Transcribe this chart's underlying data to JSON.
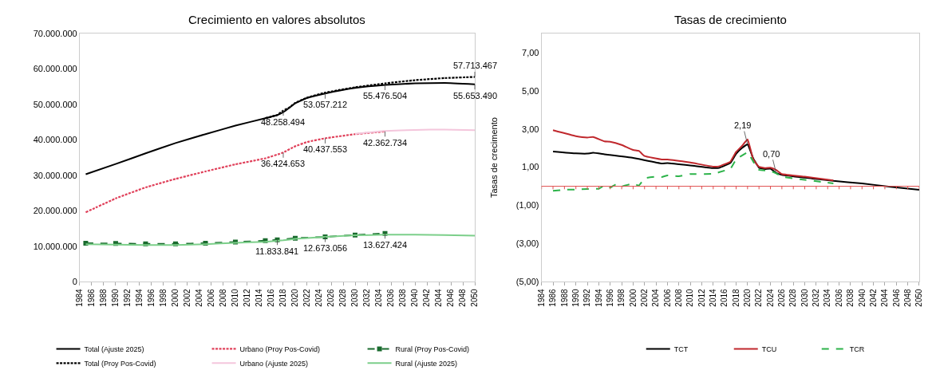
{
  "chart_data": [
    {
      "type": "line",
      "title": "Crecimiento en valores absolutos",
      "xlim": [
        1984,
        2050
      ],
      "xticks": [
        1984,
        1986,
        1988,
        1990,
        1992,
        1994,
        1996,
        1998,
        2000,
        2002,
        2004,
        2006,
        2008,
        2010,
        2012,
        2014,
        2016,
        2018,
        2020,
        2022,
        2024,
        2026,
        2028,
        2030,
        2032,
        2034,
        2036,
        2038,
        2040,
        2042,
        2044,
        2046,
        2048,
        2050
      ],
      "ylim": [
        0,
        70000000
      ],
      "yticks": [
        0,
        {
          "value": 10000000,
          "label": "10.000.000"
        },
        {
          "value": 20000000,
          "label": "20.000.000"
        },
        {
          "value": 30000000,
          "label": "30.000.000"
        },
        {
          "value": 40000000,
          "label": "40.000.000"
        },
        {
          "value": 50000000,
          "label": "50.000.000"
        },
        {
          "value": 60000000,
          "label": "60.000.000"
        },
        {
          "value": 70000000,
          "label": "70.000.000"
        }
      ],
      "legend": "bottom",
      "series": [
        {
          "name": "Total (Ajuste 2025)",
          "color": "#000000",
          "line_style": "solid",
          "marker": "none",
          "x": [
            1985,
            1990,
            1995,
            2000,
            2005,
            2010,
            2015,
            2017,
            2018,
            2019,
            2020,
            2022,
            2025,
            2030,
            2035,
            2040,
            2045,
            2050
          ],
          "values": [
            30300000,
            33200000,
            36200000,
            39100000,
            41600000,
            44000000,
            46100000,
            47000000,
            47800000,
            49000000,
            50300000,
            51800000,
            53057212,
            54600000,
            55476504,
            55900000,
            56000000,
            55653490
          ]
        },
        {
          "name": "Urbano (Proy Pos-Covid)",
          "color": "#e0405a",
          "line_style": "dotted",
          "marker": "none",
          "x": [
            1985,
            1990,
            1995,
            2000,
            2005,
            2010,
            2015,
            2018,
            2020,
            2022,
            2025,
            2030,
            2035
          ],
          "values": [
            19600000,
            23500000,
            26600000,
            29000000,
            31100000,
            33100000,
            34800000,
            36424653,
            38200000,
            39400000,
            40437553,
            41600000,
            42362734
          ]
        },
        {
          "name": "Rural (Proy Pos-Covid)",
          "color": "#1a6b2e",
          "line_style": "dashed",
          "marker": "square",
          "x": [
            1985,
            1990,
            1995,
            2000,
            2005,
            2010,
            2015,
            2017,
            2020,
            2025,
            2030,
            2035
          ],
          "values": [
            10900000,
            10800000,
            10700000,
            10700000,
            10900000,
            11200000,
            11600000,
            11833841,
            12300000,
            12673056,
            13200000,
            13627424
          ]
        },
        {
          "name": "Total (Proy Pos-Covid)",
          "color": "#000000",
          "line_style": "dotted",
          "marker": "none",
          "x": [
            2015,
            2017,
            2018,
            2019,
            2020,
            2022,
            2025,
            2030,
            2035,
            2040,
            2045,
            2050
          ],
          "values": [
            46100000,
            47000000,
            48258494,
            49100000,
            50400000,
            51900000,
            53300000,
            54800000,
            55900000,
            56800000,
            57400000,
            57713467
          ]
        },
        {
          "name": "Urbano (Ajuste 2025)",
          "color": "#f4c6dc",
          "line_style": "solid",
          "marker": "none",
          "x": [
            2030,
            2035,
            2040,
            2045,
            2050
          ],
          "values": [
            41700000,
            42500000,
            42800000,
            42900000,
            42700000
          ]
        },
        {
          "name": "Rural (Ajuste 2025)",
          "color": "#7ccf8a",
          "line_style": "solid",
          "marker": "none",
          "x": [
            1985,
            1990,
            1995,
            2000,
            2005,
            2010,
            2015,
            2018,
            2020,
            2025,
            2030,
            2035,
            2040,
            2045,
            2050
          ],
          "values": [
            10600000,
            10500000,
            10400000,
            10400000,
            10600000,
            11000000,
            11300000,
            11700000,
            12100000,
            12700000,
            13100000,
            13300000,
            13300000,
            13200000,
            13000000
          ]
        }
      ],
      "annotations": [
        {
          "text": "48.258.494",
          "x": 2018,
          "y": 48258494
        },
        {
          "text": "53.057.212",
          "x": 2025,
          "y": 53057212
        },
        {
          "text": "55.476.504",
          "x": 2035,
          "y": 55476504
        },
        {
          "text": "55.653.490",
          "x": 2050,
          "y": 55653490
        },
        {
          "text": "57.713.467",
          "x": 2050,
          "y": 57713467
        },
        {
          "text": "36.424.653",
          "x": 2018,
          "y": 36424653
        },
        {
          "text": "40.437.553",
          "x": 2025,
          "y": 40437553
        },
        {
          "text": "42.362.734",
          "x": 2035,
          "y": 42362734
        },
        {
          "text": "11.833.841",
          "x": 2017,
          "y": 11833841
        },
        {
          "text": "12.673.056",
          "x": 2025,
          "y": 12673056
        },
        {
          "text": "13.627.424",
          "x": 2035,
          "y": 13627424
        }
      ]
    },
    {
      "type": "line",
      "title": "Tasas de crecimiento",
      "ylabel": "Tasas de crecimento",
      "xlim": [
        1984,
        2050
      ],
      "xticks": [
        1984,
        1986,
        1988,
        1990,
        1992,
        1994,
        1996,
        1998,
        2000,
        2002,
        2004,
        2006,
        2008,
        2010,
        2012,
        2014,
        2016,
        2018,
        2020,
        2022,
        2024,
        2026,
        2028,
        2030,
        2032,
        2034,
        2036,
        2038,
        2040,
        2042,
        2044,
        2046,
        2048,
        2050
      ],
      "ylim": [
        -5,
        8
      ],
      "yticks": [
        {
          "value": -5,
          "label": "(5,00)"
        },
        {
          "value": -3,
          "label": "(3,00)"
        },
        {
          "value": -1,
          "label": "(1,00)"
        },
        {
          "value": 1,
          "label": "1,00"
        },
        {
          "value": 3,
          "label": "3,00"
        },
        {
          "value": 5,
          "label": "5,00"
        },
        {
          "value": 7,
          "label": "7,00"
        }
      ],
      "legend": "bottom",
      "ref_lines": [
        {
          "axis": "y",
          "value": 0,
          "color": "#e05050"
        }
      ],
      "series": [
        {
          "name": "TCT",
          "color": "#000000",
          "line_style": "solid",
          "marker": "none",
          "x": [
            1986,
            1990,
            1992,
            1993,
            1995,
            2000,
            2005,
            2006,
            2010,
            2014,
            2015,
            2017,
            2018,
            2019,
            2020,
            2021,
            2022,
            2023,
            2024,
            2025,
            2026,
            2030,
            2035,
            2040,
            2045,
            2050
          ],
          "values": [
            1.82,
            1.72,
            1.71,
            1.75,
            1.67,
            1.48,
            1.19,
            1.21,
            1.09,
            0.95,
            0.96,
            1.22,
            1.7,
            2.0,
            2.19,
            1.45,
            0.97,
            0.9,
            0.92,
            0.7,
            0.6,
            0.45,
            0.28,
            0.15,
            -0.03,
            -0.18
          ]
        },
        {
          "name": "TCU",
          "color": "#c0282d",
          "line_style": "solid",
          "marker": "none",
          "x": [
            1986,
            1990,
            1992,
            1993,
            1995,
            1996,
            1998,
            2000,
            2001,
            2002,
            2005,
            2006,
            2010,
            2014,
            2015,
            2017,
            2018,
            2019,
            2020,
            2021,
            2022,
            2023,
            2024,
            2025,
            2026,
            2030,
            2035
          ],
          "values": [
            2.93,
            2.62,
            2.55,
            2.58,
            2.35,
            2.33,
            2.16,
            1.9,
            1.85,
            1.58,
            1.4,
            1.4,
            1.24,
            1.03,
            1.04,
            1.29,
            1.8,
            2.1,
            2.45,
            1.4,
            1.02,
            0.95,
            0.97,
            0.85,
            0.64,
            0.5,
            0.31
          ]
        },
        {
          "name": "TCR",
          "color": "#2db34a",
          "line_style": "dashed",
          "marker": "none",
          "x": [
            1986,
            1988,
            1990,
            1992,
            1994,
            1995,
            1996,
            1997,
            1998,
            2000,
            2001,
            2002,
            2004,
            2005,
            2006,
            2008,
            2010,
            2014,
            2016,
            2017,
            2018,
            2020,
            2021,
            2022,
            2024,
            2025,
            2026,
            2030,
            2035
          ],
          "values": [
            -0.24,
            -0.18,
            -0.17,
            -0.14,
            -0.13,
            0.04,
            -0.07,
            0.1,
            0.0,
            0.14,
            0.04,
            0.41,
            0.5,
            0.48,
            0.57,
            0.52,
            0.64,
            0.65,
            0.82,
            0.91,
            1.4,
            1.77,
            1.29,
            0.86,
            0.8,
            0.68,
            0.5,
            0.34,
            0.15
          ]
        }
      ],
      "annotations": [
        {
          "text": "2,19",
          "x": 2020,
          "y": 2.19
        },
        {
          "text": "0,70",
          "x": 2025,
          "y": 0.7
        }
      ]
    }
  ]
}
